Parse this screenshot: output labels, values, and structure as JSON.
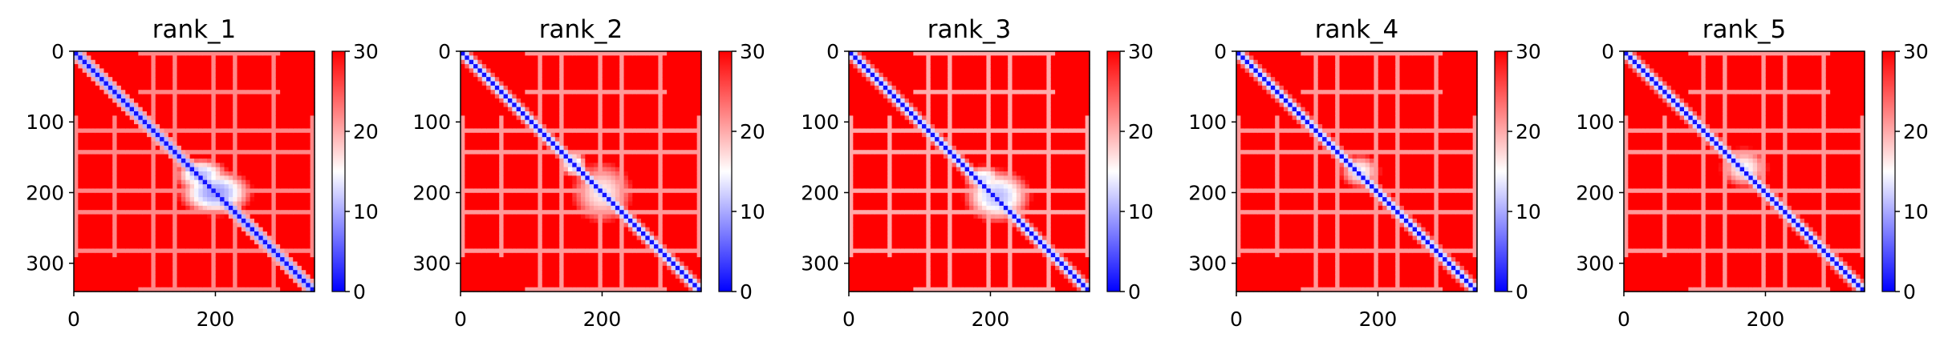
{
  "figure": {
    "description_panels": 5
  },
  "chart_data": [
    {
      "type": "heatmap",
      "title": "rank_1",
      "xlim": [
        0,
        340
      ],
      "ylim": [
        340,
        0
      ],
      "x_ticks": [
        "0",
        "200"
      ],
      "y_ticks": [
        "0",
        "100",
        "200",
        "300"
      ],
      "colorbar": {
        "min": 0,
        "max": 30,
        "ticks": [
          "0",
          "10",
          "20",
          "30"
        ],
        "colormap": "bwr"
      },
      "colors": {
        "low": "#0000ff",
        "mid": "#ffffff",
        "high": "#ff0000"
      },
      "diagonal_band_width": 6,
      "blocks": [
        {
          "x": 200,
          "y": 200,
          "rx": 55,
          "ry": 35,
          "value": 9
        },
        {
          "x": 180,
          "y": 175,
          "rx": 40,
          "ry": 25,
          "value": 11
        }
      ],
      "grid_lines_value": 22
    },
    {
      "type": "heatmap",
      "title": "rank_2",
      "xlim": [
        0,
        340
      ],
      "ylim": [
        340,
        0
      ],
      "x_ticks": [
        "0",
        "200"
      ],
      "y_ticks": [
        "0",
        "100",
        "200",
        "300"
      ],
      "colorbar": {
        "min": 0,
        "max": 30,
        "ticks": [
          "0",
          "10",
          "20",
          "30"
        ],
        "colormap": "bwr"
      },
      "colors": {
        "low": "#0000ff",
        "mid": "#ffffff",
        "high": "#ff0000"
      },
      "diagonal_band_width": 5,
      "blocks": [
        {
          "x": 200,
          "y": 200,
          "rx": 45,
          "ry": 45,
          "value": 16
        },
        {
          "x": 160,
          "y": 160,
          "rx": 20,
          "ry": 20,
          "value": 12
        }
      ],
      "grid_lines_value": 21
    },
    {
      "type": "heatmap",
      "title": "rank_3",
      "xlim": [
        0,
        340
      ],
      "ylim": [
        340,
        0
      ],
      "x_ticks": [
        "0",
        "200"
      ],
      "y_ticks": [
        "0",
        "100",
        "200",
        "300"
      ],
      "colorbar": {
        "min": 0,
        "max": 30,
        "ticks": [
          "0",
          "10",
          "20",
          "30"
        ],
        "colormap": "bwr"
      },
      "colors": {
        "low": "#0000ff",
        "mid": "#ffffff",
        "high": "#ff0000"
      },
      "diagonal_band_width": 5,
      "blocks": [
        {
          "x": 210,
          "y": 205,
          "rx": 50,
          "ry": 40,
          "value": 11
        },
        {
          "x": 190,
          "y": 180,
          "rx": 30,
          "ry": 20,
          "value": 13
        }
      ],
      "grid_lines_value": 20
    },
    {
      "type": "heatmap",
      "title": "rank_4",
      "xlim": [
        0,
        340
      ],
      "ylim": [
        340,
        0
      ],
      "x_ticks": [
        "0",
        "200"
      ],
      "y_ticks": [
        "0",
        "100",
        "200",
        "300"
      ],
      "colorbar": {
        "min": 0,
        "max": 30,
        "ticks": [
          "0",
          "10",
          "20",
          "30"
        ],
        "colormap": "bwr"
      },
      "colors": {
        "low": "#0000ff",
        "mid": "#ffffff",
        "high": "#ff0000"
      },
      "diagonal_band_width": 5,
      "blocks": [
        {
          "x": 175,
          "y": 170,
          "rx": 30,
          "ry": 25,
          "value": 15
        },
        {
          "x": 160,
          "y": 160,
          "rx": 10,
          "ry": 10,
          "value": 6
        }
      ],
      "grid_lines_value": 21
    },
    {
      "type": "heatmap",
      "title": "rank_5",
      "xlim": [
        0,
        340
      ],
      "ylim": [
        340,
        0
      ],
      "x_ticks": [
        "0",
        "200"
      ],
      "y_ticks": [
        "0",
        "100",
        "200",
        "300"
      ],
      "colorbar": {
        "min": 0,
        "max": 30,
        "ticks": [
          "0",
          "10",
          "20",
          "30"
        ],
        "colormap": "bwr"
      },
      "colors": {
        "low": "#0000ff",
        "mid": "#ffffff",
        "high": "#ff0000"
      },
      "diagonal_band_width": 5,
      "blocks": [
        {
          "x": 170,
          "y": 165,
          "rx": 35,
          "ry": 30,
          "value": 15
        },
        {
          "x": 160,
          "y": 160,
          "rx": 10,
          "ry": 10,
          "value": 7
        }
      ],
      "grid_lines_value": 21
    }
  ]
}
